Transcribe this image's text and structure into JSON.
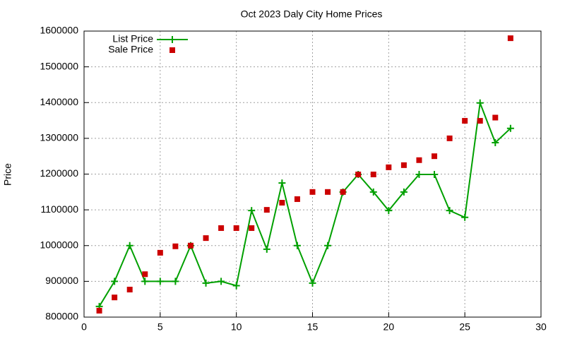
{
  "chart_data": {
    "type": "line",
    "title": "Oct 2023 Daly City Home Prices",
    "ylabel": "Price",
    "x": [
      1,
      2,
      3,
      4,
      5,
      6,
      7,
      8,
      9,
      10,
      11,
      12,
      13,
      14,
      15,
      16,
      17,
      18,
      19,
      20,
      21,
      22,
      23,
      24,
      25,
      26,
      27,
      28
    ],
    "series": [
      {
        "name": "List Price",
        "color": "#00a000",
        "mode": "lines+markers",
        "values": [
          830000,
          900000,
          1000000,
          900000,
          900000,
          900000,
          1000000,
          895000,
          900000,
          888000,
          1098000,
          990000,
          1175000,
          1000000,
          895000,
          1000000,
          1150000,
          1199000,
          1150000,
          1098000,
          1150000,
          1199000,
          1199000,
          1098000,
          1079000,
          1399000,
          1288000,
          1328000
        ]
      },
      {
        "name": "Sale Price",
        "color": "#cc0000",
        "mode": "markers",
        "values": [
          818000,
          855000,
          877000,
          920000,
          980000,
          998000,
          1000000,
          1021000,
          1049000,
          1049000,
          1049000,
          1100000,
          1120000,
          1130000,
          1150000,
          1150000,
          1150000,
          1199000,
          1199000,
          1219000,
          1225000,
          1239000,
          1250000,
          1300000,
          1349000,
          1349000,
          1358000,
          1580000
        ]
      }
    ],
    "xlim": [
      0,
      30
    ],
    "xticks": [
      0,
      5,
      10,
      15,
      20,
      25,
      30
    ],
    "ylim": [
      800000,
      1600000
    ],
    "yticks": [
      800000,
      900000,
      1000000,
      1100000,
      1200000,
      1300000,
      1400000,
      1500000,
      1600000
    ],
    "grid": true,
    "legend": "top-left"
  }
}
